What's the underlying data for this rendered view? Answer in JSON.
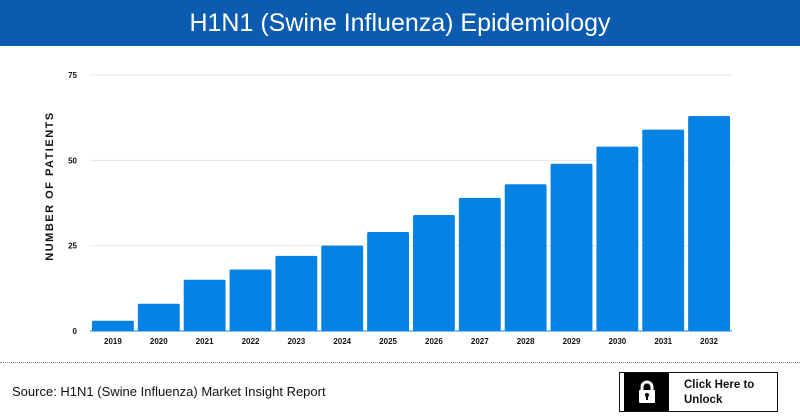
{
  "header": {
    "title": "H1N1 (Swine Influenza) Epidemiology"
  },
  "footer": {
    "source": "Source: H1N1 (Swine Influenza) Market Insight Report",
    "unlock_label": "Click Here to Unlock",
    "unlock_icon": "lock-icon"
  },
  "chart_data": {
    "type": "bar",
    "title": "H1N1 (Swine Influenza) Epidemiology",
    "xlabel": "",
    "ylabel": "NUMBER OF PATIENTS",
    "categories": [
      "2019",
      "2020",
      "2021",
      "2022",
      "2023",
      "2024",
      "2025",
      "2026",
      "2027",
      "2028",
      "2029",
      "2030",
      "2031",
      "2032"
    ],
    "values": [
      3,
      8,
      15,
      18,
      22,
      25,
      29,
      34,
      39,
      43,
      49,
      54,
      59,
      63
    ],
    "ylim": [
      0,
      75
    ],
    "yticks": [
      "0",
      "25",
      "50",
      "75"
    ],
    "grid": true,
    "bar_color": "#0681e4"
  }
}
